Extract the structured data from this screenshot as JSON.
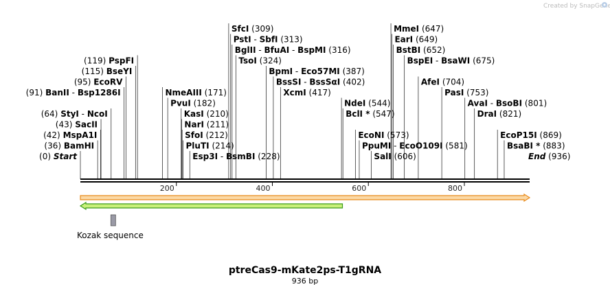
{
  "brand": "Created by SnapGene",
  "plasmid": {
    "name": "ptreCas9-mKate2ps-T1gRNA",
    "length_label": "936 bp",
    "length": 936
  },
  "sites": [
    {
      "parts": [
        "PspFI"
      ],
      "num": "(119)",
      "pos": 119,
      "row": 3,
      "side": "left"
    },
    {
      "parts": [
        "BseYI"
      ],
      "num": "(115)",
      "pos": 115,
      "row": 4,
      "side": "left"
    },
    {
      "parts": [
        "EcoRV"
      ],
      "num": "(95)",
      "pos": 95,
      "row": 5,
      "side": "left"
    },
    {
      "parts": [
        "BanII",
        "Bsp1286I"
      ],
      "num": "(91)",
      "pos": 91,
      "row": 6,
      "side": "left"
    },
    {
      "parts": [
        "StyI",
        "NcoI"
      ],
      "num": "(64)",
      "pos": 64,
      "row": 8,
      "side": "left"
    },
    {
      "parts": [
        "SacII"
      ],
      "num": "(43)",
      "pos": 43,
      "row": 9,
      "side": "left"
    },
    {
      "parts": [
        "MspA1I"
      ],
      "num": "(42)",
      "pos": 42,
      "row": 10,
      "side": "left"
    },
    {
      "parts": [
        "BamHI"
      ],
      "num": "(36)",
      "pos": 36,
      "row": 11,
      "side": "left"
    },
    {
      "parts": [
        "Start"
      ],
      "num": "(0)",
      "pos": 0,
      "row": 12,
      "side": "left",
      "italic": true
    },
    {
      "parts": [
        "SfcI"
      ],
      "num": "(309)",
      "pos": 309,
      "row": 0,
      "side": "right"
    },
    {
      "parts": [
        "PstI",
        "SbfI"
      ],
      "num": "(313)",
      "pos": 313,
      "row": 1,
      "side": "right"
    },
    {
      "parts": [
        "BglII",
        "BfuAI",
        "BspMI"
      ],
      "num": "(316)",
      "pos": 316,
      "row": 2,
      "side": "right"
    },
    {
      "parts": [
        "TsoI"
      ],
      "num": "(324)",
      "pos": 324,
      "row": 3,
      "side": "right"
    },
    {
      "parts": [
        "BpmI",
        "Eco57MI"
      ],
      "num": "(387)",
      "pos": 387,
      "row": 4,
      "side": "right"
    },
    {
      "parts": [
        "BssSI",
        "BssSαI"
      ],
      "num": "(402)",
      "pos": 402,
      "row": 5,
      "side": "right"
    },
    {
      "parts": [
        "XcmI"
      ],
      "num": "(417)",
      "pos": 417,
      "row": 6,
      "side": "right"
    },
    {
      "parts": [
        "NmeAIII"
      ],
      "num": "(171)",
      "pos": 171,
      "row": 6,
      "side": "right"
    },
    {
      "parts": [
        "PvuI"
      ],
      "num": "(182)",
      "pos": 182,
      "row": 7,
      "side": "right"
    },
    {
      "parts": [
        "KasI"
      ],
      "num": "(210)",
      "pos": 210,
      "row": 8,
      "side": "right"
    },
    {
      "parts": [
        "NarI"
      ],
      "num": "(211)",
      "pos": 211,
      "row": 9,
      "side": "right"
    },
    {
      "parts": [
        "SfoI"
      ],
      "num": "(212)",
      "pos": 212,
      "row": 10,
      "side": "right"
    },
    {
      "parts": [
        "PluTI"
      ],
      "num": "(214)",
      "pos": 214,
      "row": 11,
      "side": "right"
    },
    {
      "parts": [
        "Esp3I",
        "BsmBI"
      ],
      "num": "(228)",
      "pos": 228,
      "row": 12,
      "side": "right"
    },
    {
      "parts": [
        "NdeI"
      ],
      "num": "(544)",
      "pos": 544,
      "row": 7,
      "side": "right"
    },
    {
      "parts": [
        "BclI *"
      ],
      "num": "(547)",
      "pos": 547,
      "row": 8,
      "side": "right"
    },
    {
      "parts": [
        "EcoNI"
      ],
      "num": "(573)",
      "pos": 573,
      "row": 10,
      "side": "right"
    },
    {
      "parts": [
        "PpuMI",
        "EcoO109I"
      ],
      "num": "(581)",
      "pos": 581,
      "row": 11,
      "side": "right"
    },
    {
      "parts": [
        "SalI"
      ],
      "num": "(606)",
      "pos": 606,
      "row": 12,
      "side": "right"
    },
    {
      "parts": [
        "MmeI"
      ],
      "num": "(647)",
      "pos": 647,
      "row": 0,
      "side": "right"
    },
    {
      "parts": [
        "EarI"
      ],
      "num": "(649)",
      "pos": 649,
      "row": 1,
      "side": "right"
    },
    {
      "parts": [
        "BstBI"
      ],
      "num": "(652)",
      "pos": 652,
      "row": 2,
      "side": "right"
    },
    {
      "parts": [
        "BspEI",
        "BsaWI"
      ],
      "num": "(675)",
      "pos": 675,
      "row": 3,
      "side": "right"
    },
    {
      "parts": [
        "AfeI"
      ],
      "num": "(704)",
      "pos": 704,
      "row": 5,
      "side": "right"
    },
    {
      "parts": [
        "PasI"
      ],
      "num": "(753)",
      "pos": 753,
      "row": 6,
      "side": "right"
    },
    {
      "parts": [
        "AvaI",
        "BsoBI"
      ],
      "num": "(801)",
      "pos": 801,
      "row": 7,
      "side": "right"
    },
    {
      "parts": [
        "DraI"
      ],
      "num": "(821)",
      "pos": 821,
      "row": 8,
      "side": "right"
    },
    {
      "parts": [
        "EcoP15I"
      ],
      "num": "(869)",
      "pos": 869,
      "row": 10,
      "side": "right"
    },
    {
      "parts": [
        "BsaBI *"
      ],
      "num": "(883)",
      "pos": 883,
      "row": 11,
      "side": "right"
    },
    {
      "parts": [
        "End"
      ],
      "num": "(936)",
      "pos": 936,
      "row": 12,
      "side": "right",
      "italic": true
    }
  ],
  "ticks": [
    {
      "label": "200",
      "value": 200
    },
    {
      "label": "400",
      "value": 400
    },
    {
      "label": "600",
      "value": 600
    },
    {
      "label": "800",
      "value": 800
    }
  ],
  "features": [
    {
      "name": "orange-feature",
      "start": 0,
      "end": 936,
      "direction": "forward",
      "fill": "#fbd9a6",
      "stroke": "#e88a1a"
    },
    {
      "name": "green-feature",
      "start": 0,
      "end": 546,
      "direction": "reverse",
      "fill": "#c8f07a",
      "stroke": "#3a9a1a"
    }
  ],
  "kozak": {
    "label": "Kozak sequence",
    "start": 62,
    "end": 72,
    "color": "#9a9aa6"
  }
}
